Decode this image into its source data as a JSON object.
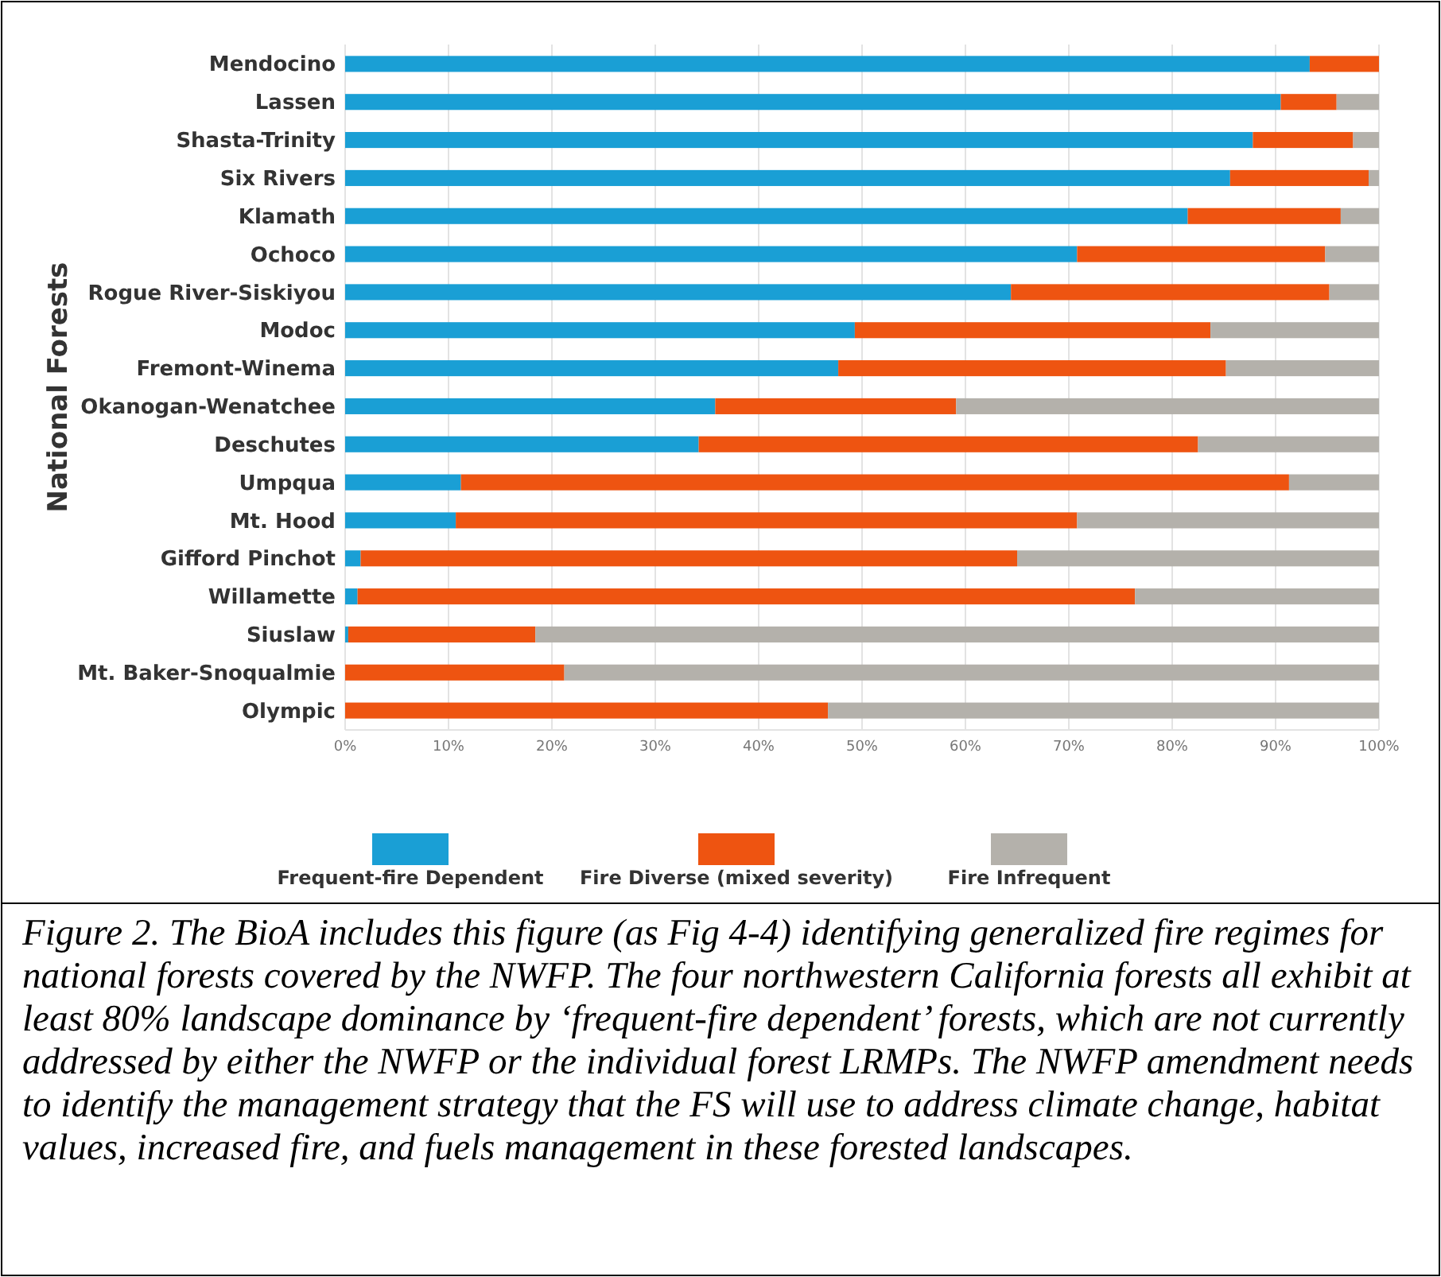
{
  "chart_data": {
    "type": "bar",
    "orientation": "horizontal",
    "stacked": true,
    "ylabel": "National Forests",
    "categories": [
      "Mendocino",
      "Lassen",
      "Shasta-Trinity",
      "Six Rivers",
      "Klamath",
      "Ochoco",
      "Rogue River-Siskiyou",
      "Modoc",
      "Fremont-Winema",
      "Okanogan-Wenatchee",
      "Deschutes",
      "Umpqua",
      "Mt. Hood",
      "Gifford Pinchot",
      "Willamette",
      "Siuslaw",
      "Mt. Baker-Snoqualmie",
      "Olympic"
    ],
    "series": [
      {
        "name": "Frequent-fire Dependent",
        "color": "#1a9fd5",
        "values": [
          93.3,
          90.5,
          87.8,
          85.6,
          81.5,
          70.8,
          64.4,
          49.3,
          47.7,
          35.8,
          34.2,
          11.2,
          10.7,
          1.5,
          1.2,
          0.3,
          0,
          0
        ]
      },
      {
        "name": "Fire Diverse (mixed severity)",
        "color": "#ee5411",
        "values": [
          6.7,
          5.4,
          9.7,
          13.4,
          14.8,
          24.0,
          30.8,
          34.4,
          37.5,
          23.3,
          48.3,
          80.1,
          60.1,
          63.5,
          75.2,
          18.1,
          21.2,
          46.7
        ]
      },
      {
        "name": "Fire Infrequent",
        "color": "#b4b1ab",
        "values": [
          0,
          4.1,
          2.5,
          1.0,
          3.7,
          5.2,
          4.8,
          16.3,
          14.8,
          40.9,
          17.5,
          8.7,
          29.2,
          35.0,
          23.6,
          81.6,
          78.8,
          53.3
        ]
      }
    ],
    "xlim": [
      0,
      100
    ],
    "xticks": [
      {
        "value": 0,
        "label": "0%"
      },
      {
        "value": 10,
        "label": "10%"
      },
      {
        "value": 20,
        "label": "20%"
      },
      {
        "value": 30,
        "label": "30%"
      },
      {
        "value": 40,
        "label": "40%"
      },
      {
        "value": 50,
        "label": "50%"
      },
      {
        "value": 60,
        "label": "60%"
      },
      {
        "value": 70,
        "label": "70%"
      },
      {
        "value": 80,
        "label": "80%"
      },
      {
        "value": 90,
        "label": "90%"
      },
      {
        "value": 100,
        "label": "100%"
      }
    ],
    "grid": "x",
    "legend": "bottom",
    "annotations": [
      "Figure 2. The BioA includes this figure (as Fig 4-4) identifying generalized fire regimes for national forests covered by the NWFP. The four northwestern California forests all exhibit at least 80% landscape dominance by ‘frequent-fire dependent’ forests, which are not currently addressed by either the NWFP or the individual forest LRMPs. The NWFP amendment needs to identify the management strategy that the FS will use to address climate change, habitat values, increased fire, and fuels management in these forested landscapes."
    ]
  }
}
